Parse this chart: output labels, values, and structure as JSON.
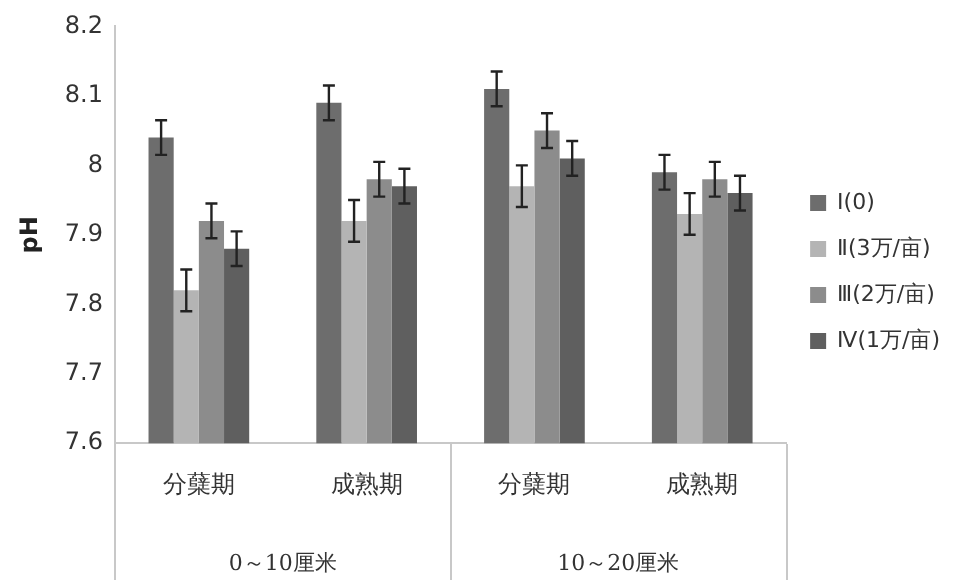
{
  "chart_data": {
    "type": "bar",
    "ylabel": "pH",
    "categories": [
      "分蘖期",
      "成熟期",
      "分蘖期",
      "成熟期"
    ],
    "annotations": [
      "0～10厘米",
      "10～20厘米"
    ],
    "series": [
      {
        "name": "Ⅰ(0)",
        "color": "#6d6d6d",
        "values": [
          8.04,
          8.09,
          8.11,
          7.99
        ],
        "errors": [
          0.025,
          0.025,
          0.025,
          0.025
        ]
      },
      {
        "name": "Ⅱ(3万/亩)",
        "color": "#b4b4b4",
        "values": [
          7.82,
          7.92,
          7.97,
          7.93
        ],
        "errors": [
          0.03,
          0.03,
          0.03,
          0.03
        ]
      },
      {
        "name": "Ⅲ(2万/亩)",
        "color": "#8c8c8c",
        "values": [
          7.92,
          7.98,
          8.05,
          7.98
        ],
        "errors": [
          0.025,
          0.025,
          0.025,
          0.025
        ]
      },
      {
        "name": "Ⅳ(1万/亩)",
        "color": "#5f5f5f",
        "values": [
          7.88,
          7.97,
          8.01,
          7.96
        ],
        "errors": [
          0.025,
          0.025,
          0.025,
          0.025
        ]
      }
    ],
    "ylim": [
      7.6,
      8.2
    ],
    "yticks": [
      7.6,
      7.7,
      7.8,
      7.9,
      8,
      8.1,
      8.2
    ],
    "grid": false,
    "legend": "right"
  }
}
